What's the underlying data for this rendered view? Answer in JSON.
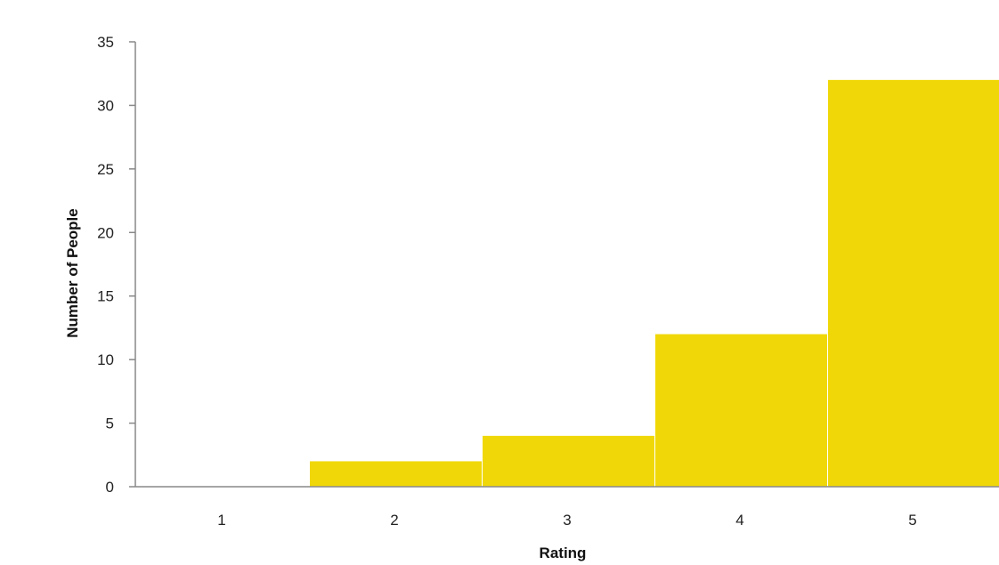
{
  "chart_data": {
    "type": "bar",
    "categories": [
      "1",
      "2",
      "3",
      "4",
      "5"
    ],
    "values": [
      0,
      2,
      4,
      12,
      32
    ],
    "xlabel": "Rating",
    "ylabel": "Number of People",
    "ylim": [
      0,
      35
    ],
    "yticks": [
      "0",
      "5",
      "10",
      "15",
      "20",
      "25",
      "30",
      "35"
    ],
    "bar_color": "#F0D808",
    "axis_color": "#888888",
    "grid": false,
    "legend": "none"
  }
}
